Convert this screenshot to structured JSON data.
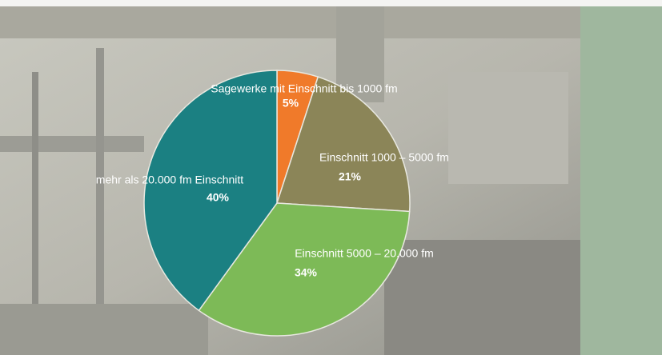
{
  "chart_data": {
    "type": "pie",
    "categories": [
      "Sagewerke mit Einschnitt bis 1000 fm",
      "Einschnitt 1000 – 5000 fm",
      "Einschnitt 5000 – 20.000 fm",
      "mehr als  20.000  fm Einschnitt"
    ],
    "values": [
      5,
      21,
      34,
      40
    ],
    "value_labels": [
      "5%",
      "21%",
      "34%",
      "40%"
    ],
    "colors": [
      "#f07a2a",
      "#8b8558",
      "#7dba57",
      "#1b8082"
    ]
  }
}
